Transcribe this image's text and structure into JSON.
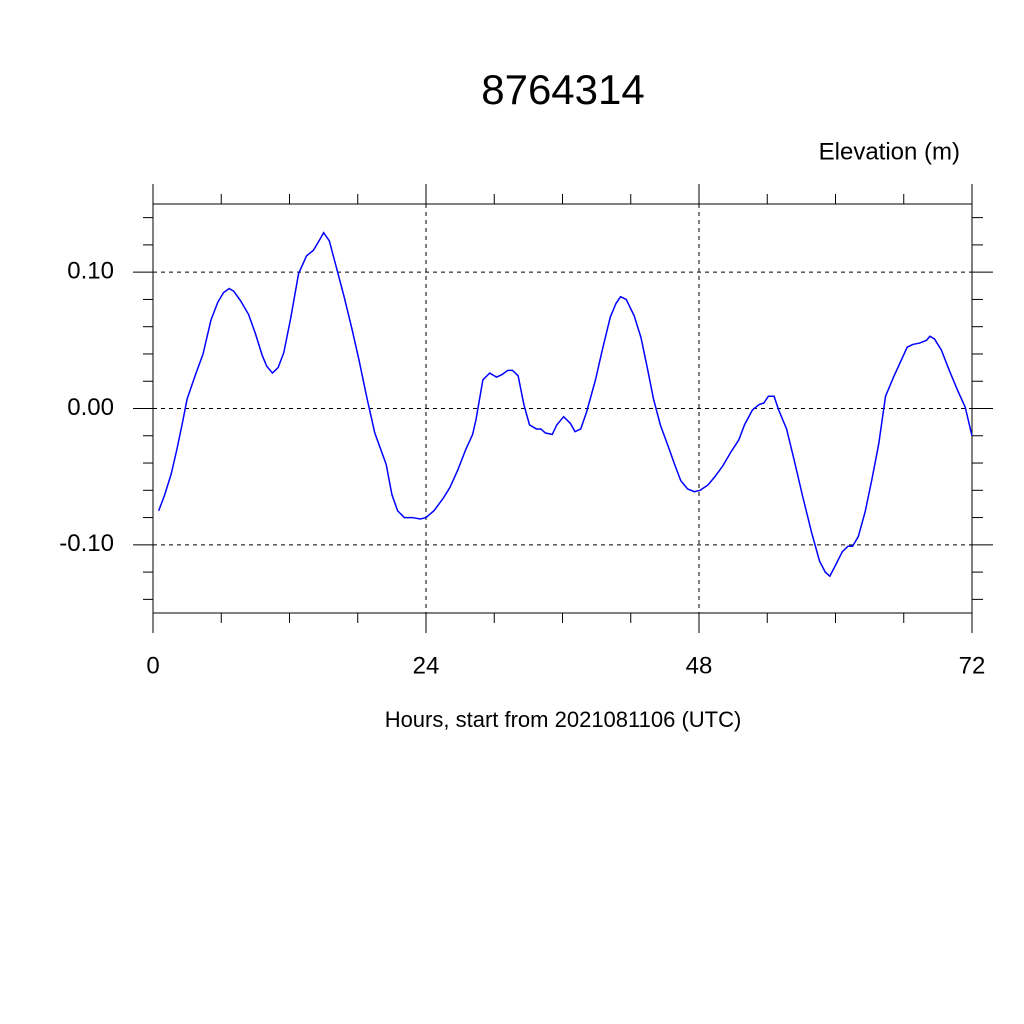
{
  "chart_data": {
    "type": "line",
    "title": "8764314",
    "y_label": "Elevation (m)",
    "x_label": "Hours, start from 2021081106 (UTC)",
    "xlim": [
      0,
      72
    ],
    "xticks": [
      0,
      24,
      48,
      72
    ],
    "xminorticks": [
      6,
      12,
      18,
      30,
      36,
      42,
      54,
      60,
      66
    ],
    "ylim": [
      -0.15,
      0.15
    ],
    "yticks": [
      {
        "value": -0.1,
        "label": "-0.10"
      },
      {
        "value": 0,
        "label": "0.00"
      },
      {
        "value": 0.1,
        "label": "0.10"
      }
    ],
    "yminorticks": [
      -0.14,
      -0.12,
      -0.08,
      -0.06,
      -0.04,
      -0.02,
      0.02,
      0.04,
      0.06,
      0.08,
      0.12,
      0.14
    ],
    "grid": true,
    "series": [
      {
        "color": "#0000ff",
        "x": [
          0.5,
          1.0,
          1.6,
          2.1,
          2.6,
          3.0,
          3.7,
          4.4,
          5.1,
          5.7,
          6.2,
          6.7,
          7.1,
          7.7,
          8.4,
          9.0,
          9.6,
          10.0,
          10.5,
          11.0,
          11.5,
          12.1,
          12.8,
          13.5,
          14.1,
          14.6,
          15.0,
          15.5,
          16.2,
          16.8,
          17.5,
          18.1,
          18.8,
          19.5,
          20.5,
          21.0,
          21.5,
          22.1,
          22.8,
          23.5,
          24.0,
          24.7,
          25.5,
          26.1,
          26.8,
          27.5,
          28.1,
          28.4,
          29.0,
          29.6,
          30.2,
          30.7,
          31.2,
          31.6,
          32.1,
          32.6,
          33.1,
          33.7,
          34.1,
          34.5,
          35.1,
          35.5,
          36.1,
          36.7,
          37.1,
          37.6,
          38.1,
          38.9,
          39.5,
          40.2,
          40.7,
          41.1,
          41.6,
          42.3,
          42.9,
          43.5,
          44.0,
          44.6,
          45.3,
          45.9,
          46.4,
          47.0,
          47.6,
          48.1,
          48.8,
          49.4,
          50.1,
          50.8,
          51.5,
          52.0,
          52.7,
          53.3,
          53.7,
          54.1,
          54.6,
          55.0,
          55.7,
          56.4,
          57.1,
          57.9,
          58.6,
          59.1,
          59.5,
          60.0,
          60.6,
          61.1,
          61.5,
          62.0,
          62.6,
          63.2,
          63.8,
          64.4,
          65.1,
          65.7,
          66.3,
          66.8,
          67.4,
          68.0,
          68.3,
          68.7,
          69.3,
          70.0,
          70.7,
          71.4,
          72.0
        ],
        "values": [
          -0.075,
          -0.064,
          -0.048,
          -0.03,
          -0.01,
          0.007,
          0.024,
          0.04,
          0.065,
          0.078,
          0.085,
          0.088,
          0.086,
          0.079,
          0.069,
          0.055,
          0.039,
          0.031,
          0.026,
          0.03,
          0.041,
          0.066,
          0.099,
          0.112,
          0.116,
          0.123,
          0.129,
          0.123,
          0.101,
          0.082,
          0.058,
          0.036,
          0.008,
          -0.018,
          -0.041,
          -0.063,
          -0.075,
          -0.08,
          -0.08,
          -0.081,
          -0.08,
          -0.075,
          -0.066,
          -0.058,
          -0.045,
          -0.03,
          -0.019,
          -0.008,
          0.021,
          0.026,
          0.023,
          0.025,
          0.028,
          0.028,
          0.024,
          0.003,
          -0.012,
          -0.015,
          -0.015,
          -0.018,
          -0.019,
          -0.012,
          -0.006,
          -0.011,
          -0.017,
          -0.015,
          -0.003,
          0.021,
          0.043,
          0.067,
          0.077,
          0.082,
          0.08,
          0.068,
          0.052,
          0.028,
          0.007,
          -0.012,
          -0.028,
          -0.042,
          -0.053,
          -0.059,
          -0.061,
          -0.06,
          -0.056,
          -0.05,
          -0.042,
          -0.032,
          -0.023,
          -0.012,
          -0.001,
          0.003,
          0.004,
          0.009,
          0.009,
          -0.001,
          -0.015,
          -0.039,
          -0.064,
          -0.091,
          -0.112,
          -0.12,
          -0.123,
          -0.115,
          -0.105,
          -0.101,
          -0.101,
          -0.094,
          -0.076,
          -0.052,
          -0.026,
          0.009,
          0.023,
          0.034,
          0.045,
          0.047,
          0.048,
          0.05,
          0.053,
          0.051,
          0.043,
          0.028,
          0.014,
          0.001,
          -0.02
        ]
      }
    ]
  }
}
